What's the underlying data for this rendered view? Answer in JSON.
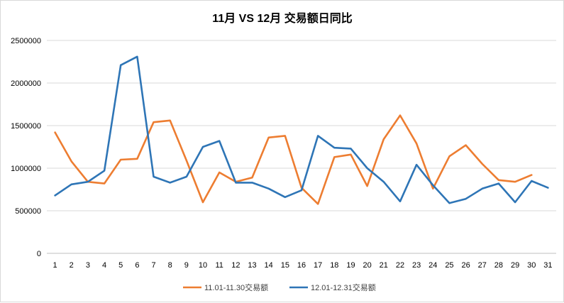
{
  "chart_data": {
    "type": "line",
    "title": "11月 VS 12月 交易额日同比",
    "xlabel": "",
    "ylabel": "",
    "x": [
      1,
      2,
      3,
      4,
      5,
      6,
      7,
      8,
      9,
      10,
      11,
      12,
      13,
      14,
      15,
      16,
      17,
      18,
      19,
      20,
      21,
      22,
      23,
      24,
      25,
      26,
      27,
      28,
      29,
      30,
      31
    ],
    "ylim": [
      0,
      2500000
    ],
    "yticks": [
      0,
      500000,
      1000000,
      1500000,
      2000000,
      2500000
    ],
    "ytick_labels": [
      "0",
      "500000",
      "1000000",
      "1500000",
      "2000000",
      "2500000"
    ],
    "grid": true,
    "legend_position": "bottom",
    "series": [
      {
        "name": "11.01-11.30交易额",
        "color": "#ed7d31",
        "values": [
          1420000,
          1080000,
          840000,
          820000,
          1100000,
          1110000,
          1540000,
          1560000,
          1090000,
          600000,
          950000,
          840000,
          890000,
          1360000,
          1380000,
          770000,
          580000,
          1130000,
          1160000,
          790000,
          1340000,
          1620000,
          1290000,
          760000,
          1140000,
          1270000,
          1050000,
          860000,
          840000,
          920000,
          null
        ]
      },
      {
        "name": "12.01-12.31交易额",
        "color": "#2e75b6",
        "values": [
          680000,
          810000,
          840000,
          970000,
          2210000,
          2310000,
          900000,
          830000,
          900000,
          1250000,
          1320000,
          830000,
          830000,
          760000,
          660000,
          740000,
          1380000,
          1240000,
          1230000,
          1000000,
          840000,
          610000,
          1040000,
          800000,
          590000,
          640000,
          760000,
          820000,
          600000,
          850000,
          770000
        ]
      }
    ]
  }
}
